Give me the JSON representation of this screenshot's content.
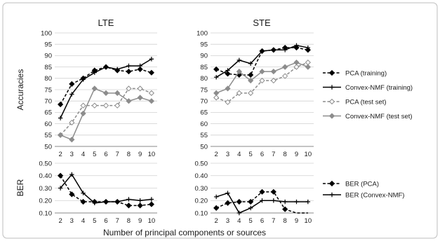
{
  "chart_data": {
    "type": "line",
    "xlabel": "Number of principal components or sources",
    "x": [
      2,
      3,
      4,
      5,
      6,
      7,
      8,
      9,
      10
    ],
    "panels": [
      {
        "id": "lte_acc",
        "title": "LTE",
        "ylabel": "Accuracies",
        "ylim": [
          50,
          100
        ],
        "yticks": [
          "50",
          "55",
          "60",
          "65",
          "70",
          "75",
          "80",
          "85",
          "90",
          "95",
          "100"
        ],
        "series": [
          {
            "name": "PCA (training)",
            "values": [
              68.5,
              77.5,
              80,
              83.5,
              85,
              83.5,
              83,
              84,
              82.5
            ]
          },
          {
            "name": "Convex-NMF (training)",
            "values": [
              62.5,
              73,
              79.5,
              82.5,
              85,
              84,
              85.5,
              85.5,
              88.5
            ]
          },
          {
            "name": "PCA (test set)",
            "values": [
              55,
              60.5,
              68,
              68,
              68,
              68,
              75.5,
              75.5,
              73.5
            ]
          },
          {
            "name": "Convex-NMF (test set)",
            "values": [
              55,
              53,
              64.5,
              75.5,
              73.5,
              73.5,
              70,
              71.5,
              70
            ]
          }
        ]
      },
      {
        "id": "ste_acc",
        "title": "STE",
        "ylabel": "",
        "ylim": [
          50,
          100
        ],
        "yticks": [
          "50",
          "55",
          "60",
          "65",
          "70",
          "75",
          "80",
          "85",
          "90",
          "95",
          "100"
        ],
        "series": [
          {
            "name": "PCA (training)",
            "values": [
              84,
              82,
              81.5,
              81.5,
              92,
              92.5,
              93.5,
              93.5,
              92.5
            ]
          },
          {
            "name": "Convex-NMF (training)",
            "values": [
              80.5,
              83.5,
              88,
              86.5,
              92,
              92.5,
              92.5,
              94.5,
              93.5
            ]
          },
          {
            "name": "PCA (test set)",
            "values": [
              71.5,
              69.5,
              73.5,
              73.5,
              79,
              79,
              81,
              85,
              87
            ]
          },
          {
            "name": "Convex-NMF (test set)",
            "values": [
              73.5,
              75.5,
              83,
              79,
              83,
              83,
              85,
              87,
              85
            ]
          }
        ]
      },
      {
        "id": "lte_ber",
        "title": "",
        "ylabel": "BER",
        "ylim": [
          0.1,
          0.5
        ],
        "yticks": [
          "0.10",
          "0.20",
          "0.30",
          "0.40",
          "0.50"
        ],
        "series": [
          {
            "name": "BER (PCA)",
            "values": [
              0.4,
              0.25,
              0.19,
              0.19,
              0.19,
              0.19,
              0.16,
              0.16,
              0.17
            ]
          },
          {
            "name": "BER (Convex-NMF)",
            "values": [
              0.3,
              0.41,
              0.26,
              0.18,
              0.19,
              0.19,
              0.21,
              0.2,
              0.21
            ]
          }
        ]
      },
      {
        "id": "ste_ber",
        "title": "",
        "ylabel": "",
        "ylim": [
          0.1,
          0.5
        ],
        "yticks": [
          "0.10",
          "0.20",
          "0.30",
          "0.40",
          "0.50"
        ],
        "series": [
          {
            "name": "BER (PCA)",
            "values": [
              0.14,
              0.18,
              0.19,
              0.19,
              0.27,
              0.27,
              0.13,
              0.09,
              0.08
            ]
          },
          {
            "name": "BER (Convex-NMF)",
            "values": [
              0.23,
              0.26,
              0.1,
              0.14,
              0.2,
              0.2,
              0.19,
              0.19,
              0.19
            ]
          }
        ]
      }
    ],
    "legend_accuracy": [
      "PCA (training)",
      "Convex-NMF (training)",
      "PCA (test set)",
      "Convex-NMF (test set)"
    ],
    "legend_ber": [
      "BER (PCA)",
      "BER (Convex-NMF)"
    ],
    "series_styles": {
      "PCA (training)": {
        "color": "#000000",
        "dash": "dashed",
        "marker": "diamond"
      },
      "Convex-NMF (training)": {
        "color": "#000000",
        "dash": "solid",
        "marker": "plus"
      },
      "PCA (test set)": {
        "color": "#8c8c8c",
        "dash": "dashed",
        "marker": "diamond-open"
      },
      "Convex-NMF (test set)": {
        "color": "#8c8c8c",
        "dash": "solid",
        "marker": "diamond"
      },
      "BER (PCA)": {
        "color": "#000000",
        "dash": "dashed",
        "marker": "diamond"
      },
      "BER (Convex-NMF)": {
        "color": "#000000",
        "dash": "solid",
        "marker": "plus"
      }
    },
    "grid": true,
    "legend_position": "right"
  }
}
